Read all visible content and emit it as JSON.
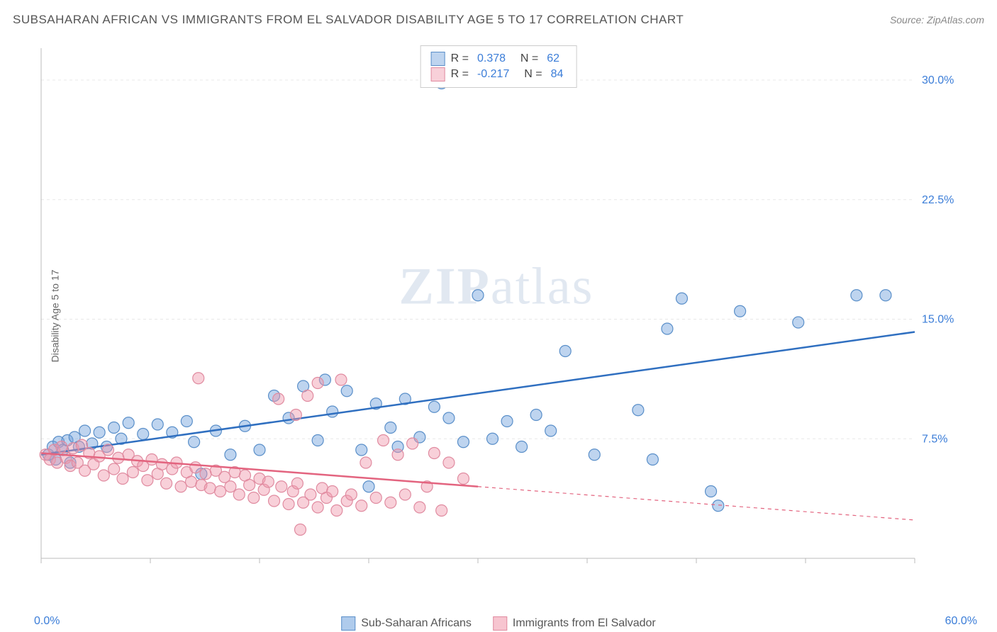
{
  "title": "SUBSAHARAN AFRICAN VS IMMIGRANTS FROM EL SALVADOR DISABILITY AGE 5 TO 17 CORRELATION CHART",
  "source": "Source: ZipAtlas.com",
  "ylabel": "Disability Age 5 to 17",
  "watermark_a": "ZIP",
  "watermark_b": "atlas",
  "chart": {
    "type": "scatter",
    "xlim": [
      0,
      60
    ],
    "ylim": [
      0,
      32
    ],
    "xticks": [
      0,
      7.5,
      15,
      22.5,
      30,
      37.5,
      45,
      52.5,
      60
    ],
    "yticks": [
      7.5,
      15,
      22.5,
      30
    ],
    "ytick_labels": [
      "7.5%",
      "15.0%",
      "22.5%",
      "30.0%"
    ],
    "xaxis_labels": {
      "left": "0.0%",
      "right": "60.0%"
    },
    "background_color": "#ffffff",
    "grid_color": "#e8e8e8",
    "axis_color": "#bbbbbb",
    "axis_label_color": "#3b7dd8",
    "marker_radius": 8,
    "marker_stroke_width": 1.2,
    "line_width": 2.5,
    "series": [
      {
        "name": "Sub-Saharan Africans",
        "fill": "rgba(110,160,220,0.45)",
        "stroke": "#5a8fc9",
        "line_color": "#2f6fc0",
        "r_value": "0.378",
        "n_value": "62",
        "trend": {
          "x1": 0,
          "y1": 6.5,
          "x2": 60,
          "y2": 14.2,
          "solid_until": 60
        },
        "points": [
          [
            0.5,
            6.5
          ],
          [
            0.8,
            7.0
          ],
          [
            1.0,
            6.2
          ],
          [
            1.2,
            7.3
          ],
          [
            1.5,
            6.8
          ],
          [
            1.8,
            7.4
          ],
          [
            2.0,
            6.0
          ],
          [
            2.3,
            7.6
          ],
          [
            2.6,
            7.0
          ],
          [
            3.0,
            8.0
          ],
          [
            3.5,
            7.2
          ],
          [
            4.0,
            7.9
          ],
          [
            4.5,
            7.0
          ],
          [
            5.0,
            8.2
          ],
          [
            5.5,
            7.5
          ],
          [
            6.0,
            8.5
          ],
          [
            7.0,
            7.8
          ],
          [
            8.0,
            8.4
          ],
          [
            9.0,
            7.9
          ],
          [
            10.0,
            8.6
          ],
          [
            10.5,
            7.3
          ],
          [
            11.0,
            5.3
          ],
          [
            12.0,
            8.0
          ],
          [
            13.0,
            6.5
          ],
          [
            14.0,
            8.3
          ],
          [
            15.0,
            6.8
          ],
          [
            16.0,
            10.2
          ],
          [
            17.0,
            8.8
          ],
          [
            18.0,
            10.8
          ],
          [
            19.0,
            7.4
          ],
          [
            19.5,
            11.2
          ],
          [
            20.0,
            9.2
          ],
          [
            21.0,
            10.5
          ],
          [
            22.0,
            6.8
          ],
          [
            22.5,
            4.5
          ],
          [
            23.0,
            9.7
          ],
          [
            24.0,
            8.2
          ],
          [
            24.5,
            7.0
          ],
          [
            25.0,
            10.0
          ],
          [
            26.0,
            7.6
          ],
          [
            27.0,
            9.5
          ],
          [
            27.5,
            29.8
          ],
          [
            28.0,
            8.8
          ],
          [
            29.0,
            7.3
          ],
          [
            30.0,
            16.5
          ],
          [
            31.0,
            7.5
          ],
          [
            32.0,
            8.6
          ],
          [
            33.0,
            7.0
          ],
          [
            34.0,
            9.0
          ],
          [
            35.0,
            8.0
          ],
          [
            36.0,
            13.0
          ],
          [
            38.0,
            6.5
          ],
          [
            41.0,
            9.3
          ],
          [
            42.0,
            6.2
          ],
          [
            43.0,
            14.4
          ],
          [
            44.0,
            16.3
          ],
          [
            46.0,
            4.2
          ],
          [
            46.5,
            3.3
          ],
          [
            48.0,
            15.5
          ],
          [
            52.0,
            14.8
          ],
          [
            56.0,
            16.5
          ],
          [
            58.0,
            16.5
          ]
        ]
      },
      {
        "name": "Immigrants from El Salvador",
        "fill": "rgba(240,150,170,0.45)",
        "stroke": "#e08ba0",
        "line_color": "#e3647f",
        "r_value": "-0.217",
        "n_value": "84",
        "trend": {
          "x1": 0,
          "y1": 6.6,
          "x2": 60,
          "y2": 2.4,
          "solid_until": 30
        },
        "points": [
          [
            0.3,
            6.5
          ],
          [
            0.6,
            6.2
          ],
          [
            0.9,
            6.8
          ],
          [
            1.1,
            6.0
          ],
          [
            1.4,
            7.0
          ],
          [
            1.7,
            6.3
          ],
          [
            2.0,
            5.8
          ],
          [
            2.2,
            6.9
          ],
          [
            2.5,
            6.0
          ],
          [
            2.8,
            7.1
          ],
          [
            3.0,
            5.5
          ],
          [
            3.3,
            6.6
          ],
          [
            3.6,
            5.9
          ],
          [
            4.0,
            6.4
          ],
          [
            4.3,
            5.2
          ],
          [
            4.6,
            6.8
          ],
          [
            5.0,
            5.6
          ],
          [
            5.3,
            6.3
          ],
          [
            5.6,
            5.0
          ],
          [
            6.0,
            6.5
          ],
          [
            6.3,
            5.4
          ],
          [
            6.6,
            6.1
          ],
          [
            7.0,
            5.8
          ],
          [
            7.3,
            4.9
          ],
          [
            7.6,
            6.2
          ],
          [
            8.0,
            5.3
          ],
          [
            8.3,
            5.9
          ],
          [
            8.6,
            4.7
          ],
          [
            9.0,
            5.6
          ],
          [
            9.3,
            6.0
          ],
          [
            9.6,
            4.5
          ],
          [
            10.0,
            5.4
          ],
          [
            10.3,
            4.8
          ],
          [
            10.6,
            5.7
          ],
          [
            10.8,
            11.3
          ],
          [
            11.0,
            4.6
          ],
          [
            11.3,
            5.3
          ],
          [
            11.6,
            4.4
          ],
          [
            12.0,
            5.5
          ],
          [
            12.3,
            4.2
          ],
          [
            12.6,
            5.1
          ],
          [
            13.0,
            4.5
          ],
          [
            13.3,
            5.4
          ],
          [
            13.6,
            4.0
          ],
          [
            14.0,
            5.2
          ],
          [
            14.3,
            4.6
          ],
          [
            14.6,
            3.8
          ],
          [
            15.0,
            5.0
          ],
          [
            15.3,
            4.3
          ],
          [
            15.6,
            4.8
          ],
          [
            16.0,
            3.6
          ],
          [
            16.3,
            10.0
          ],
          [
            16.5,
            4.5
          ],
          [
            17.0,
            3.4
          ],
          [
            17.5,
            9.0
          ],
          [
            17.3,
            4.2
          ],
          [
            17.6,
            4.7
          ],
          [
            17.8,
            1.8
          ],
          [
            18.0,
            3.5
          ],
          [
            18.3,
            10.2
          ],
          [
            18.5,
            4.0
          ],
          [
            19.0,
            3.2
          ],
          [
            19.0,
            11.0
          ],
          [
            19.3,
            4.4
          ],
          [
            19.6,
            3.8
          ],
          [
            20.0,
            4.2
          ],
          [
            20.3,
            3.0
          ],
          [
            20.6,
            11.2
          ],
          [
            21.0,
            3.6
          ],
          [
            21.3,
            4.0
          ],
          [
            22.0,
            3.3
          ],
          [
            22.3,
            6.0
          ],
          [
            23.0,
            3.8
          ],
          [
            23.5,
            7.4
          ],
          [
            24.0,
            3.5
          ],
          [
            24.5,
            6.5
          ],
          [
            25.0,
            4.0
          ],
          [
            25.5,
            7.2
          ],
          [
            26.0,
            3.2
          ],
          [
            26.5,
            4.5
          ],
          [
            27.0,
            6.6
          ],
          [
            27.5,
            3.0
          ],
          [
            28.0,
            6.0
          ],
          [
            29.0,
            5.0
          ]
        ]
      }
    ]
  },
  "legend_bottom": [
    {
      "label": "Sub-Saharan Africans",
      "fill": "rgba(110,160,220,0.55)",
      "stroke": "#5a8fc9"
    },
    {
      "label": "Immigrants from El Salvador",
      "fill": "rgba(240,150,170,0.55)",
      "stroke": "#e08ba0"
    }
  ]
}
